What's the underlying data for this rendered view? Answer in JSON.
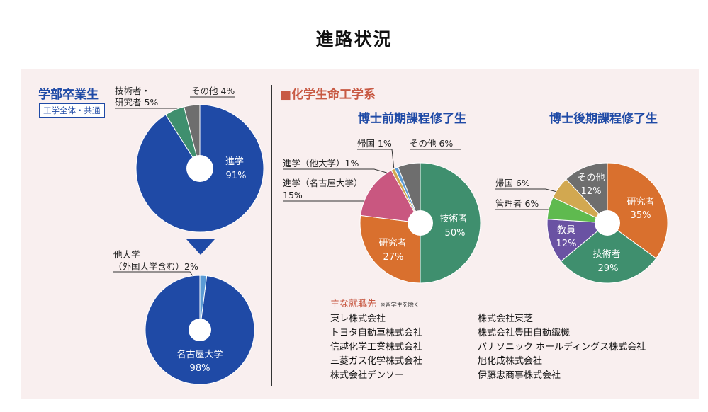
{
  "page": {
    "title": "進路状況"
  },
  "undergrad": {
    "heading": "学部卒業生",
    "tag": "工学全体・共通",
    "labels": {
      "tech_line1": "技術者・",
      "tech_line2": "研究者 5%",
      "other": "その他 4%",
      "center_line1": "進学",
      "center_line2": "91%"
    }
  },
  "grad_school": {
    "labels": {
      "other_line1": "他大学",
      "other_line2": "（外国大学含む）2%",
      "center_line1": "名古屋大学",
      "center_line2": "98%"
    }
  },
  "department": {
    "title": "■化学生命工学系"
  },
  "masters": {
    "heading": "博士前期課程修了生",
    "labels": {
      "return": "帰国 1%",
      "other": "その他 6%",
      "other_univ": "進学（他大学）1%",
      "nagoya_line1": "進学（名古屋大学）",
      "nagoya_line2": "15%",
      "engineer_line1": "技術者",
      "engineer_line2": "50%",
      "researcher_line1": "研究者",
      "researcher_line2": "27%"
    }
  },
  "doctoral": {
    "heading": "博士後期課程修了生",
    "labels": {
      "return": "帰国 6%",
      "manager": "管理者 6%",
      "other_line1": "その他",
      "other_line2": "12%",
      "researcher_line1": "研究者",
      "researcher_line2": "35%",
      "teacher_line1": "教員",
      "teacher_line2": "12%",
      "engineer_line1": "技術者",
      "engineer_line2": "29%"
    }
  },
  "employers": {
    "title": "主な就職先",
    "note": "※留学生を除く",
    "left": [
      "東レ株式会社",
      "トヨタ自動車株式会社",
      "信越化学工業株式会社",
      "三菱ガス化学株式会社",
      "株式会社デンソー"
    ],
    "right": [
      "株式会社東芝",
      "株式会社豊田自動織機",
      "パナソニック ホールディングス株式会社",
      "旭化成株式会社",
      "伊藤忠商事株式会社"
    ]
  },
  "chart_data": [
    {
      "type": "pie",
      "heading": "学部卒業生",
      "categories": [
        "進学",
        "技術者・研究者",
        "その他"
      ],
      "values": [
        91,
        5,
        4
      ],
      "colors": [
        "#1f4aa6",
        "#3f8f6e",
        "#6e6e6e"
      ]
    },
    {
      "type": "pie",
      "categories": [
        "名古屋大学",
        "他大学（外国大学含む）"
      ],
      "values": [
        98,
        2
      ],
      "colors": [
        "#1f4aa6",
        "#5b9bd5"
      ]
    },
    {
      "type": "pie",
      "heading": "博士前期課程修了生",
      "categories": [
        "技術者",
        "研究者",
        "進学（名古屋大学）",
        "進学（他大学）",
        "帰国",
        "その他"
      ],
      "values": [
        50,
        27,
        15,
        1,
        1,
        6
      ],
      "colors": [
        "#3f8f6e",
        "#d9702e",
        "#c95780",
        "#d2a850",
        "#5b9bd5",
        "#6e6e6e"
      ]
    },
    {
      "type": "pie",
      "heading": "博士後期課程修了生",
      "categories": [
        "研究者",
        "技術者",
        "教員",
        "管理者",
        "帰国",
        "その他"
      ],
      "values": [
        35,
        29,
        12,
        6,
        6,
        12
      ],
      "colors": [
        "#d9702e",
        "#3f8f6e",
        "#6a52a3",
        "#5fba4f",
        "#d2a850",
        "#6e6e6e"
      ]
    }
  ]
}
